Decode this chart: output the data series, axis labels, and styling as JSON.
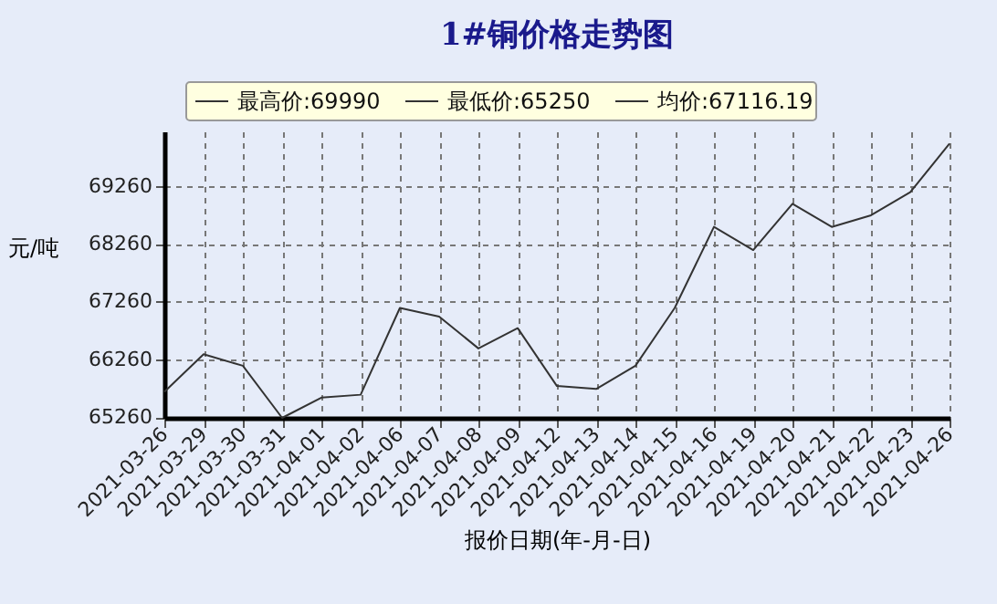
{
  "chart_data": {
    "type": "line",
    "title": "1#铜价格走势图",
    "xlabel": "报价日期(年-月-日)",
    "ylabel": "元/吨",
    "categories": [
      "2021-03-26",
      "2021-03-29",
      "2021-03-30",
      "2021-03-31",
      "2021-04-01",
      "2021-04-02",
      "2021-04-06",
      "2021-04-07",
      "2021-04-08",
      "2021-04-09",
      "2021-04-12",
      "2021-04-13",
      "2021-04-14",
      "2021-04-15",
      "2021-04-16",
      "2021-04-19",
      "2021-04-20",
      "2021-04-21",
      "2021-04-22",
      "2021-04-23",
      "2021-04-26"
    ],
    "series": [
      {
        "color": "#333333",
        "values": [
          65700,
          66350,
          66150,
          65250,
          65600,
          65650,
          67150,
          67000,
          66450,
          66800,
          65800,
          65750,
          66150,
          67150,
          68550,
          68150,
          68950,
          68550,
          68750,
          69150,
          69990
        ]
      }
    ],
    "ylim": [
      65250,
      70200
    ],
    "yticks": [
      65260,
      66260,
      67260,
      68260,
      69260
    ],
    "grid": true,
    "marker": "none",
    "line_style": "solid",
    "annotations": [
      "最高价:69990",
      "最低价:65250",
      "均价:67116.19"
    ]
  }
}
